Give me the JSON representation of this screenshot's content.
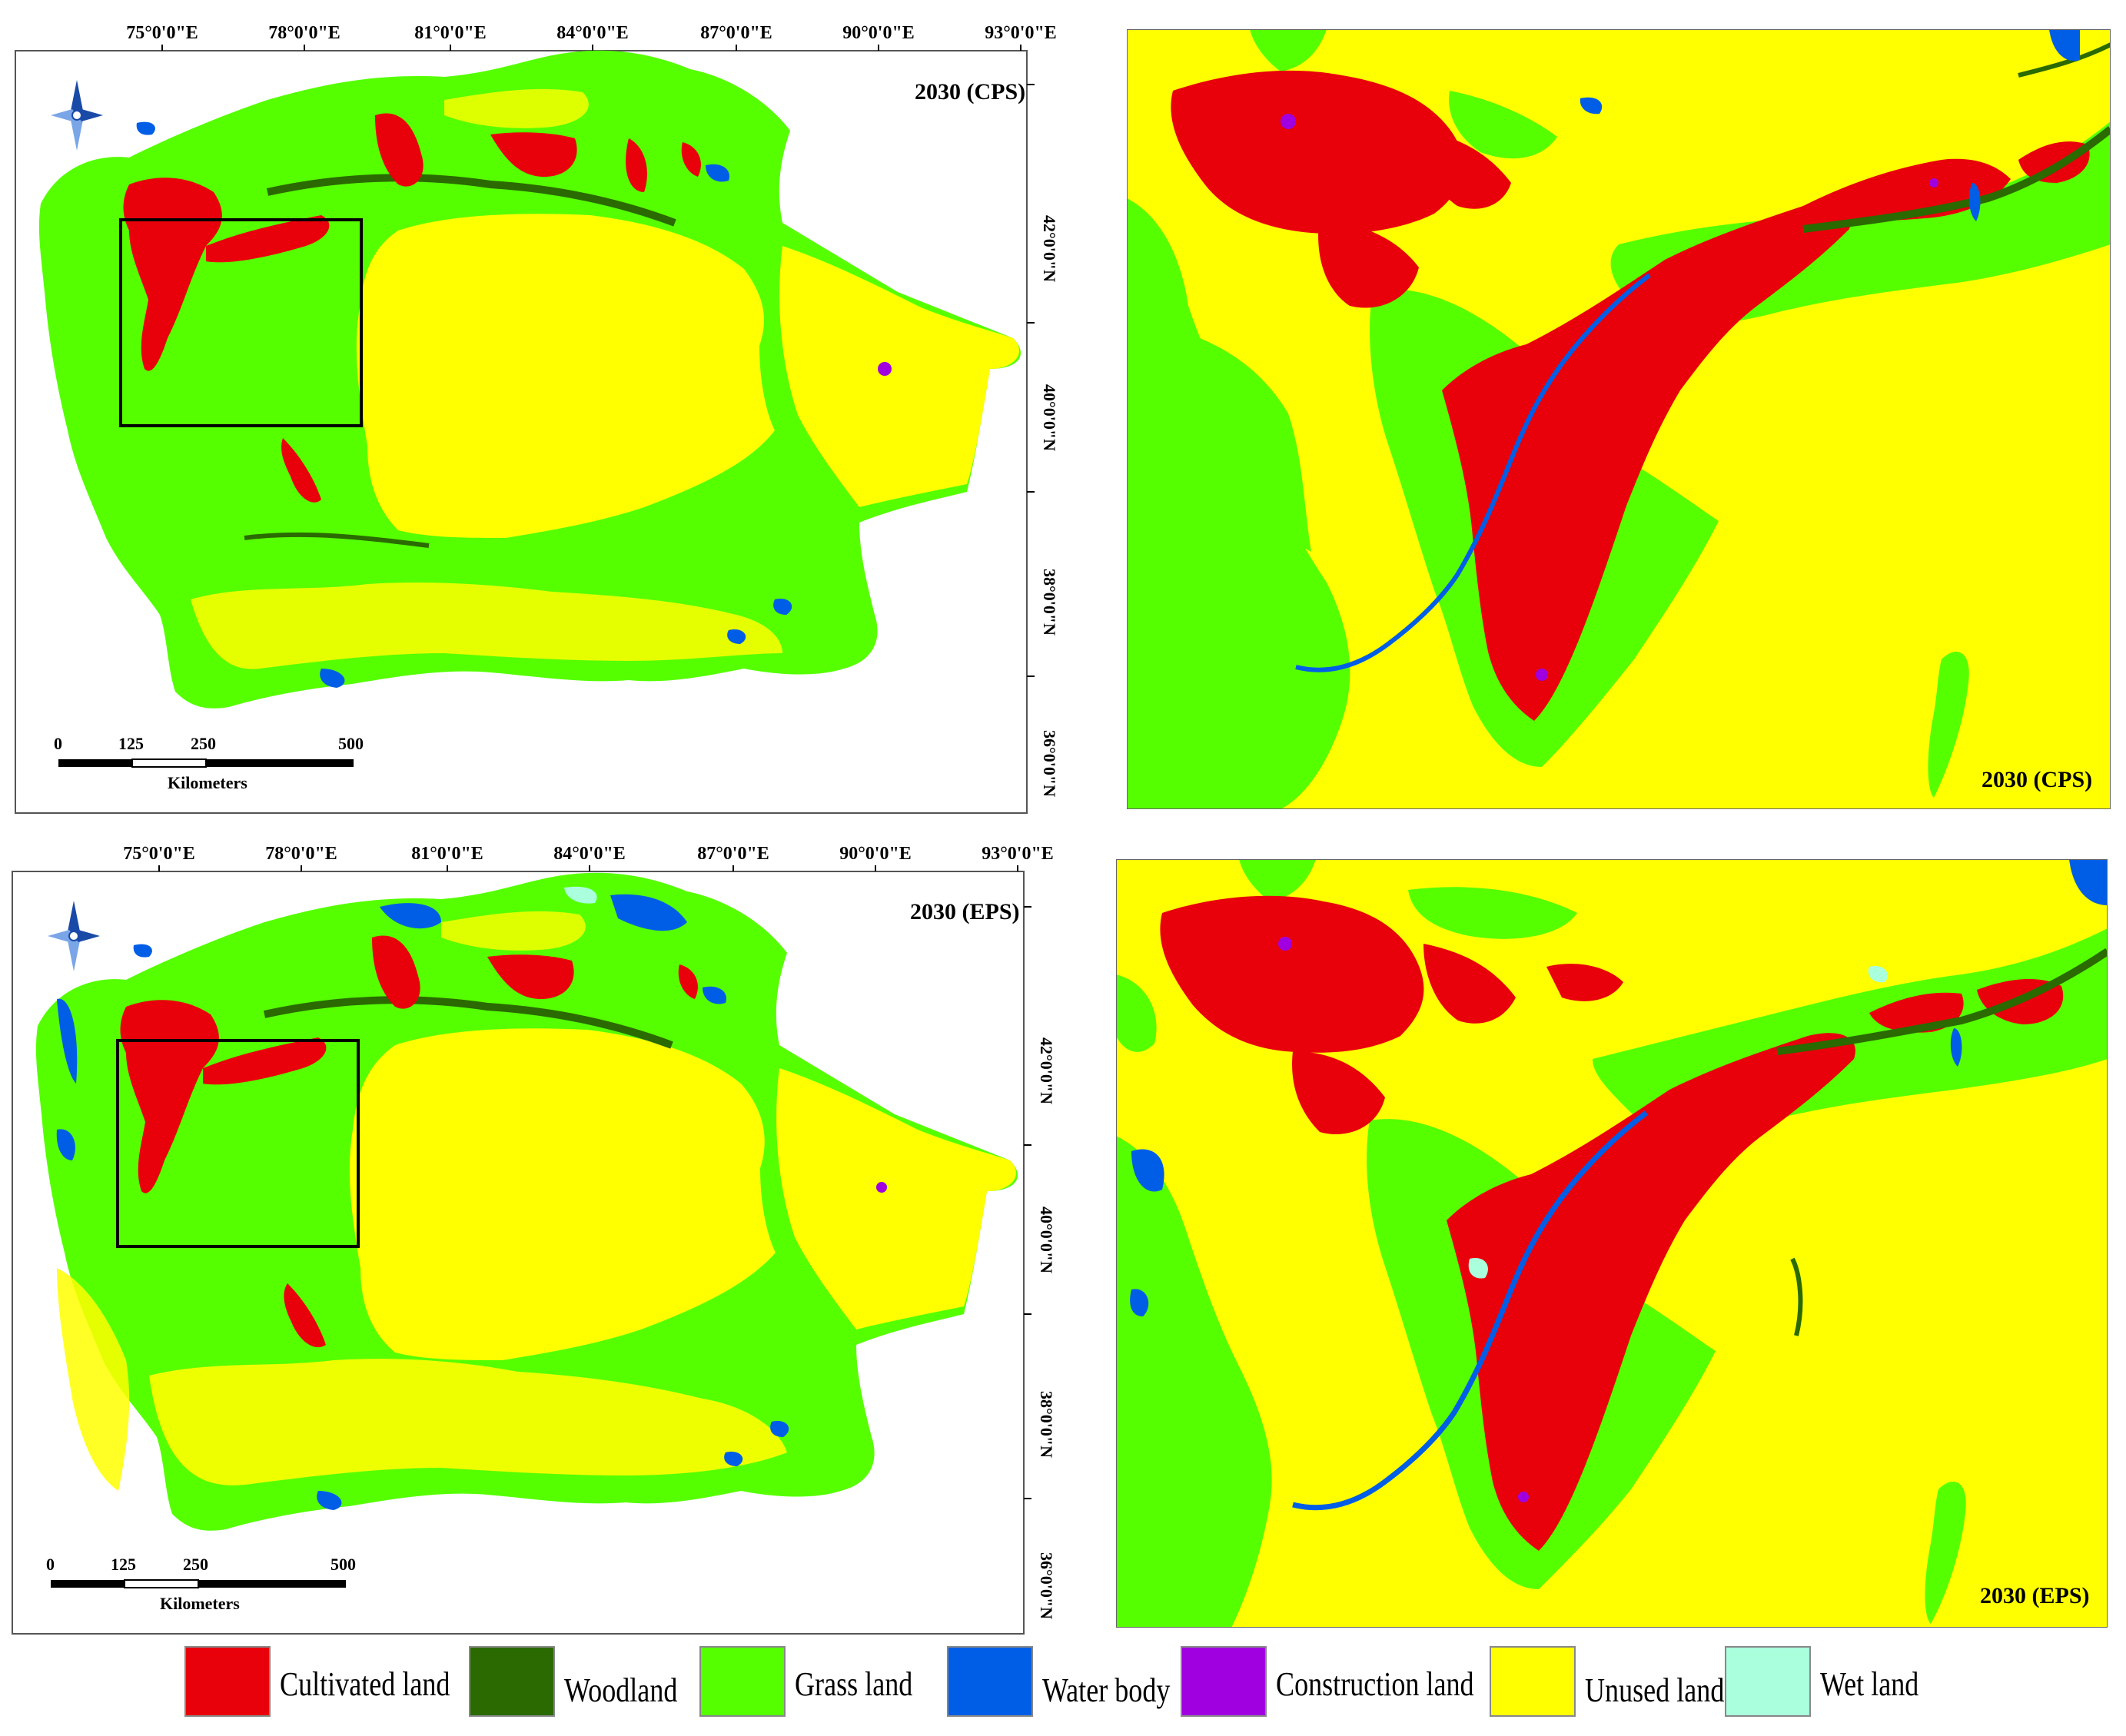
{
  "panels": {
    "top_left": {
      "title": "2030 (CPS)",
      "lon_labels": [
        "75°0'0\"E",
        "78°0'0\"E",
        "81°0'0\"E",
        "84°0'0\"E",
        "87°0'0\"E",
        "90°0'0\"E",
        "93°0'0\"E"
      ],
      "lat_labels": [
        "42°0'0\"N",
        "40°0'0\"N",
        "38°0'0\"N",
        "36°0'0\"N"
      ],
      "scale_ticks": [
        "0",
        "125",
        "250",
        "500"
      ],
      "scale_unit": "Kilometers"
    },
    "top_right": {
      "title": "2030 (CPS)"
    },
    "bottom_left": {
      "title": "2030 (EPS)",
      "lon_labels": [
        "75°0'0\"E",
        "78°0'0\"E",
        "81°0'0\"E",
        "84°0'0\"E",
        "87°0'0\"E",
        "90°0'0\"E",
        "93°0'0\"E"
      ],
      "lat_labels": [
        "42°0'0\"N",
        "40°0'0\"N",
        "38°0'0\"N",
        "36°0'0\"N"
      ],
      "scale_ticks": [
        "0",
        "125",
        "250",
        "500"
      ],
      "scale_unit": "Kilometers"
    },
    "bottom_right": {
      "title": "2030 (EPS)"
    }
  },
  "legend": [
    {
      "label": "Cultivated land",
      "color": "#e8000b"
    },
    {
      "label": "Woodland",
      "color": "#2a6a00"
    },
    {
      "label": "Grass land",
      "color": "#55ff00"
    },
    {
      "label": "Water body",
      "color": "#005ee6"
    },
    {
      "label": "Construction land",
      "color": "#a000e0"
    },
    {
      "label": "Unused land",
      "color": "#ffff00"
    },
    {
      "label": "Wet land",
      "color": "#aaffdd"
    }
  ],
  "colors": {
    "cultivated": "#e8000b",
    "woodland": "#2a6a00",
    "grass": "#55ff00",
    "water": "#005ee6",
    "construction": "#a000e0",
    "unused": "#ffff00",
    "wetland": "#aaffdd"
  }
}
